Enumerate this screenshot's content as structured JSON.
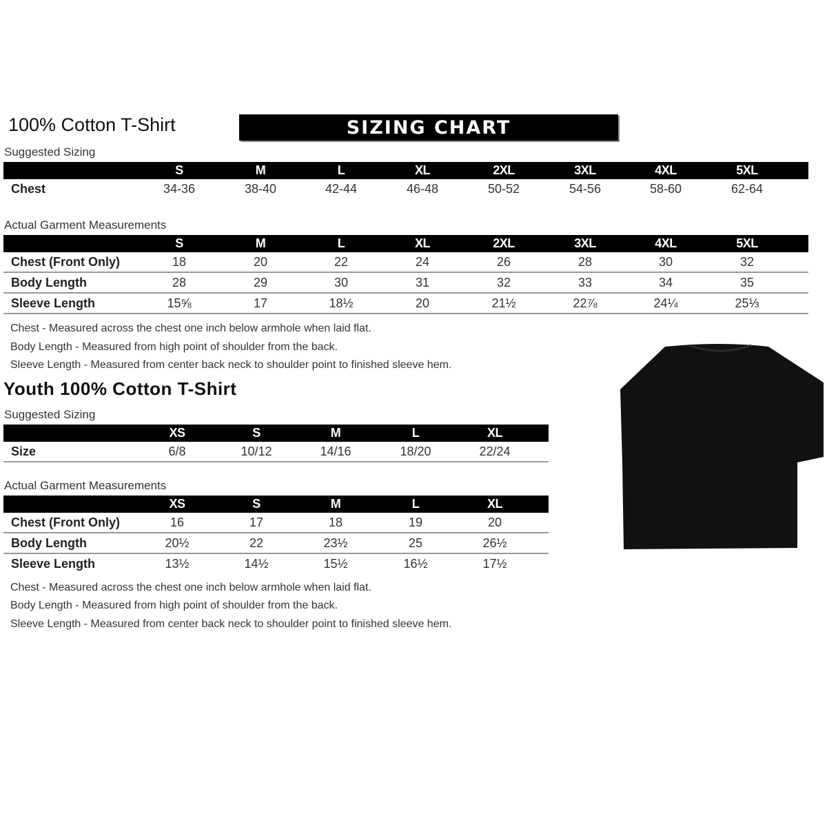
{
  "adult": {
    "title": "100% Cotton T-Shirt",
    "banner": "SIZING CHART",
    "suggested_label": "Suggested Sizing",
    "sizes": [
      "S",
      "M",
      "L",
      "XL",
      "2XL",
      "3XL",
      "4XL",
      "5XL"
    ],
    "suggested_rows": [
      {
        "label": "Chest",
        "values": [
          "34-36",
          "38-40",
          "42-44",
          "46-48",
          "50-52",
          "54-56",
          "58-60",
          "62-64"
        ]
      }
    ],
    "actual_label": "Actual Garment Measurements",
    "actual_rows": [
      {
        "label": "Chest (Front Only)",
        "values": [
          "18",
          "20",
          "22",
          "24",
          "26",
          "28",
          "30",
          "32"
        ]
      },
      {
        "label": "Body Length",
        "values": [
          "28",
          "29",
          "30",
          "31",
          "32",
          "33",
          "34",
          "35"
        ]
      },
      {
        "label": "Sleeve Length",
        "values": [
          "15⅝",
          "17",
          "18½",
          "20",
          "21½",
          "22⅞",
          "24¼",
          "25⅓"
        ]
      }
    ],
    "notes": [
      "Chest - Measured across the chest one inch below armhole when laid flat.",
      "Body Length - Measured from high point of shoulder from the back.",
      "Sleeve Length - Measured from center back neck to shoulder point to finished sleeve hem."
    ]
  },
  "youth": {
    "title": "Youth 100% Cotton T-Shirt",
    "suggested_label": "Suggested Sizing",
    "sizes": [
      "XS",
      "S",
      "M",
      "L",
      "XL"
    ],
    "suggested_rows": [
      {
        "label": "Size",
        "values": [
          "6/8",
          "10/12",
          "14/16",
          "18/20",
          "22/24"
        ]
      }
    ],
    "actual_label": "Actual Garment Measurements",
    "actual_rows": [
      {
        "label": "Chest (Front Only)",
        "values": [
          "16",
          "17",
          "18",
          "19",
          "20"
        ]
      },
      {
        "label": "Body Length",
        "values": [
          "20½",
          "22",
          "23½",
          "25",
          "26½"
        ]
      },
      {
        "label": "Sleeve Length",
        "values": [
          "13½",
          "14½",
          "15½",
          "16½",
          "17½"
        ]
      }
    ],
    "notes": [
      "Chest - Measured across the chest one inch below armhole when laid flat.",
      "Body Length - Measured from high point of shoulder from the back.",
      "Sleeve Length - Measured from center back neck to shoulder point to finished sleeve hem."
    ]
  },
  "image": {
    "icon": "t-shirt-icon",
    "color": "#111111"
  }
}
